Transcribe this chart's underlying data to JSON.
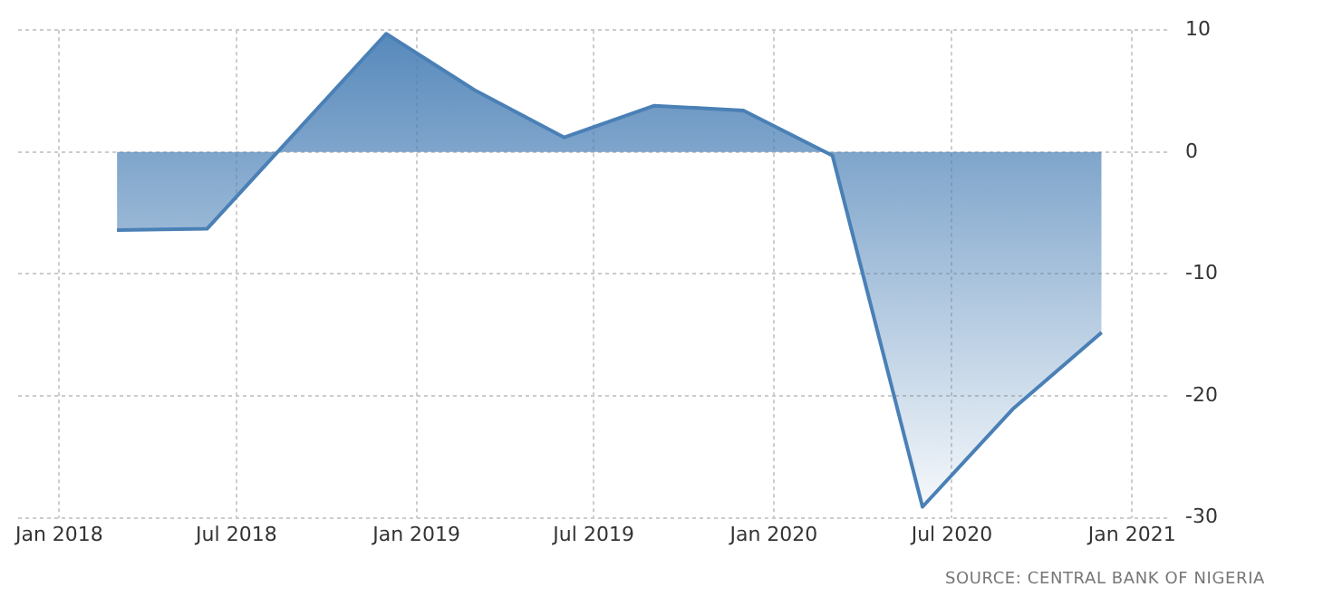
{
  "chart_data": {
    "type": "area",
    "x": [
      "2018-03-01",
      "2018-06-01",
      "2018-12-01",
      "2019-03-01",
      "2019-06-01",
      "2019-09-01",
      "2019-12-01",
      "2020-03-01",
      "2020-06-01",
      "2020-09-01",
      "2020-12-01"
    ],
    "series": [
      {
        "color": "#4a80b6",
        "values": [
          -6.4,
          -6.3,
          9.7,
          5.1,
          1.2,
          3.8,
          3.4,
          -0.3,
          -29.1,
          -21.1,
          -14.8
        ]
      }
    ],
    "xlim": [
      "2017-11-20",
      "2021-02-06"
    ],
    "xticks": [
      {
        "value": "2018-01",
        "label": "Jan 2018"
      },
      {
        "value": "2018-07",
        "label": "Jul 2018"
      },
      {
        "value": "2019-01",
        "label": "Jan 2019"
      },
      {
        "value": "2019-07",
        "label": "Jul 2019"
      },
      {
        "value": "2020-01",
        "label": "Jan 2020"
      },
      {
        "value": "2020-07",
        "label": "Jul 2020"
      },
      {
        "value": "2021-01",
        "label": "Jan 2021"
      }
    ],
    "ylim": [
      -30,
      10
    ],
    "yticks": [
      -30,
      -20,
      -10,
      0,
      10
    ],
    "grid": true,
    "legend": false,
    "annotations": [
      "SOURCE: CENTRAL BANK OF NIGERIA"
    ]
  }
}
